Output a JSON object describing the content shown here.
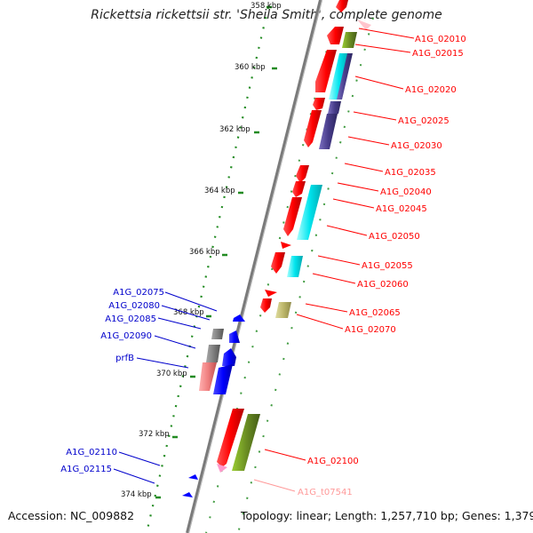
{
  "title": "Rickettsia rickettsii str. 'Sheila Smith', complete genome",
  "footer": {
    "accession": "Accession: NC_009882",
    "topology": "Topology: linear; Length: 1,257,710 bp; Genes: 1,379"
  },
  "scale_labels": [
    "358 kbp",
    "360 kbp",
    "362 kbp",
    "364 kbp",
    "366 kbp",
    "368 kbp",
    "370 kbp",
    "372 kbp",
    "374 kbp"
  ],
  "right_labels": [
    "A1G_02010",
    "A1G_02015",
    "A1G_02020",
    "A1G_02025",
    "A1G_02030",
    "A1G_02035",
    "A1G_02040",
    "A1G_02045",
    "A1G_02050",
    "A1G_02055",
    "A1G_02060",
    "A1G_02065",
    "A1G_02070",
    "A1G_02100",
    "A1G_t07541"
  ],
  "left_labels": [
    "A1G_02075",
    "A1G_02080",
    "A1G_02085",
    "A1G_02090",
    "prfB",
    "A1G_02110",
    "A1G_02115"
  ],
  "colors": {
    "cds": "#ff0000",
    "cds_dark": "#b30000",
    "green_feature": "#6b8e23",
    "cyan_feature": "#00e5ee",
    "indigo_feature": "#483d8b",
    "olive_light": "#bdb76b",
    "trna_pink": "#ff99cc",
    "grey_feature": "#808080",
    "blue_gene": "#0000ff",
    "pink_feature": "#f08080",
    "right_label": "#ff0000",
    "left_label": "#0000cc",
    "trna_label": "#ff9999",
    "scale_dots": "#228b22",
    "backbone": "#7a7a7a"
  }
}
